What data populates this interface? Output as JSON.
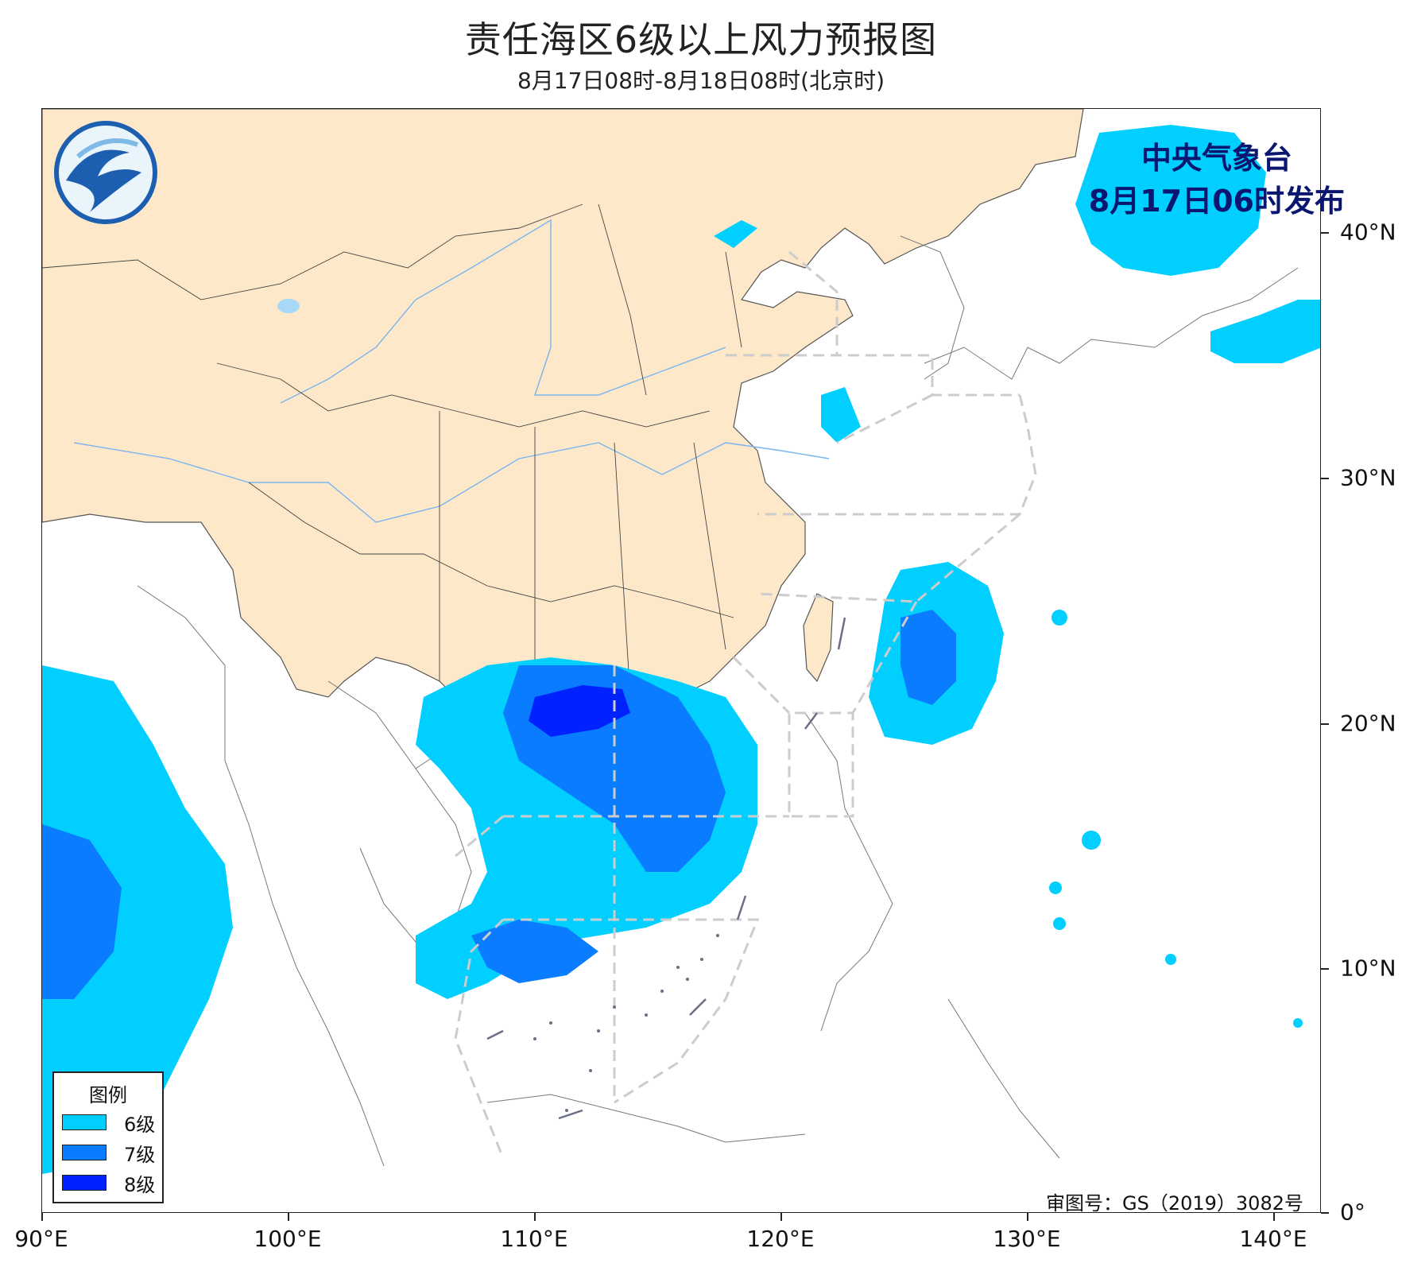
{
  "title": "责任海区6级以上风力预报图",
  "subtitle": "8月17日08时-8月18日08时(北京时)",
  "publisher": {
    "line1": "中央气象台",
    "line2": "8月17日06时发布"
  },
  "logo": {
    "icon": "cma-logo-icon"
  },
  "legend": {
    "title": "图例",
    "items": [
      {
        "label": "6级",
        "color": "#00cfff"
      },
      {
        "label": "7级",
        "color": "#0a7cff"
      },
      {
        "label": "8级",
        "color": "#0022ff"
      }
    ]
  },
  "approval_number": "审图号：GS（2019）3082号",
  "axes": {
    "x_ticks": [
      "90°E",
      "100°E",
      "110°E",
      "120°E",
      "130°E",
      "140°E"
    ],
    "y_ticks": [
      "40°N",
      "30°N",
      "20°N",
      "10°N",
      "0°"
    ]
  },
  "colors": {
    "land_china": "#fde9c9",
    "water": "#a8d8f8",
    "boundary": "#444444",
    "sea_area_lines": "#cccccc"
  }
}
